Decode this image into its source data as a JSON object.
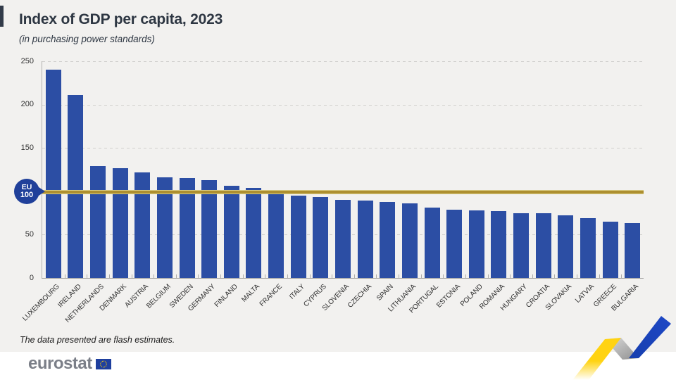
{
  "header": {
    "title": "Index of GDP per capita, 2023",
    "subtitle": "(in purchasing power standards)"
  },
  "reference": {
    "badge_line1": "EU",
    "badge_line2": "100",
    "value": 100,
    "line_color": "#ad8f30",
    "badge_color": "#20409a"
  },
  "footer": {
    "note": "The data presented are flash estimates.",
    "logo_text": "eurostat"
  },
  "colors": {
    "background": "#f2f1ef",
    "footer_strip": "#ffffff",
    "bar": "#2c4ea4",
    "title_text": "#2d3642",
    "ribbon_yellow": "#ffd312",
    "ribbon_gray": "#b5b5b5",
    "ribbon_blue": "#1e45be"
  },
  "chart_data": {
    "type": "bar",
    "title": "Index of GDP per capita, 2023",
    "subtitle": "(in purchasing power standards)",
    "xlabel": "",
    "ylabel": "",
    "ylim": [
      0,
      250
    ],
    "yticks": [
      0,
      50,
      100,
      150,
      200,
      250
    ],
    "grid": "horizontal dashed",
    "sort": "descending",
    "reference_line": {
      "label": "EU 100",
      "value": 100
    },
    "categories": [
      "LUXEMBOURG",
      "IRELAND",
      "NETHERLANDS",
      "DENMARK",
      "AUSTRIA",
      "BELGIUM",
      "SWEDEN",
      "GERMANY",
      "FINLAND",
      "MALTA",
      "FRANCE",
      "ITALY",
      "CYPRUS",
      "SLOVENIA",
      "CZECHIA",
      "SPAIN",
      "LITHUANIA",
      "PORTUGAL",
      "ESTONIA",
      "POLAND",
      "ROMANIA",
      "HUNGARY",
      "CROATIA",
      "SLOVAKIA",
      "LATVIA",
      "GREECE",
      "BULGARIA"
    ],
    "values": [
      240,
      211,
      129,
      127,
      122,
      116,
      115,
      113,
      106,
      104,
      97,
      95,
      93,
      90,
      89,
      88,
      86,
      81,
      79,
      78,
      77,
      75,
      75,
      72,
      69,
      65,
      63
    ]
  }
}
